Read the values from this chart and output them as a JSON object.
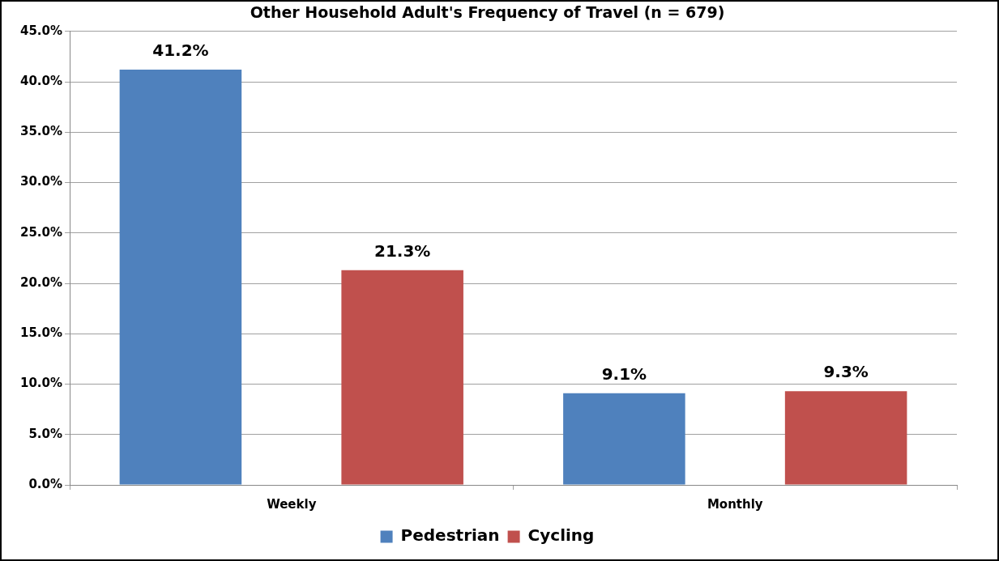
{
  "chart_data": {
    "type": "bar",
    "title": "Other Household Adult's Frequency of Travel (n = 679)",
    "categories": [
      "Weekly",
      "Monthly"
    ],
    "series": [
      {
        "name": "Pedestrian",
        "color": "#4f81bd",
        "values": [
          41.2,
          9.1
        ],
        "value_labels": [
          "41.2%",
          "9.1%"
        ]
      },
      {
        "name": "Cycling",
        "color": "#c0504d",
        "values": [
          21.3,
          9.3
        ],
        "value_labels": [
          "21.3%",
          "9.3%"
        ]
      }
    ],
    "ylim": [
      0,
      45
    ],
    "yticks": [
      {
        "value": 0,
        "label": "0.0%"
      },
      {
        "value": 5,
        "label": "5.0%"
      },
      {
        "value": 10,
        "label": "10.0%"
      },
      {
        "value": 15,
        "label": "15.0%"
      },
      {
        "value": 20,
        "label": "20.0%"
      },
      {
        "value": 25,
        "label": "25.0%"
      },
      {
        "value": 30,
        "label": "30.0%"
      },
      {
        "value": 35,
        "label": "35.0%"
      },
      {
        "value": 40,
        "label": "40.0%"
      },
      {
        "value": 45,
        "label": "45.0%"
      }
    ],
    "grid": "y",
    "legend": "bottom"
  }
}
